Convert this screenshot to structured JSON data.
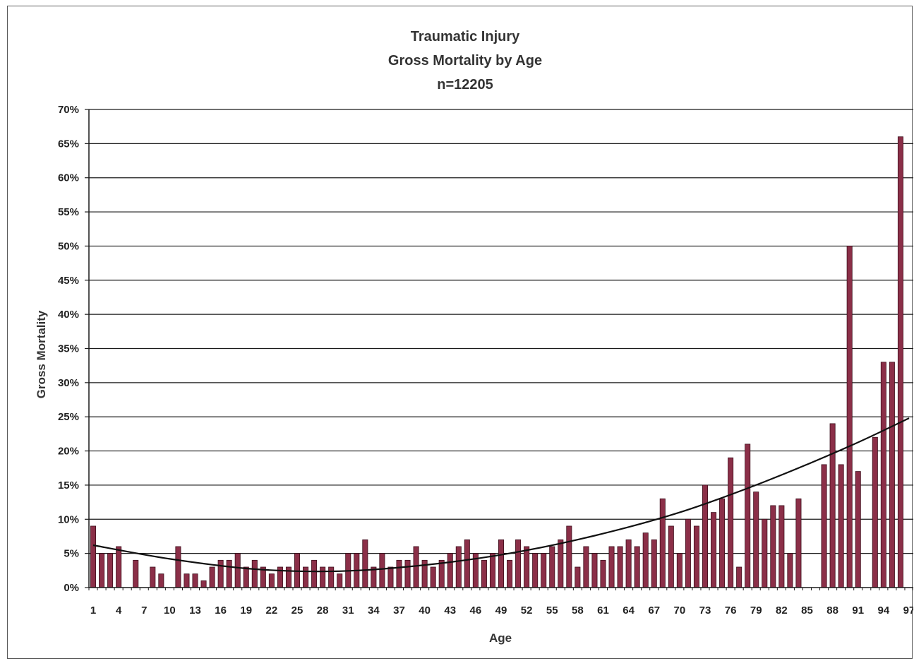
{
  "chart_data": {
    "type": "bar",
    "title_lines": [
      "Traumatic Injury",
      "Gross Mortality by Age",
      "n=12205"
    ],
    "xlabel": "Age",
    "ylabel": "Gross Mortality",
    "ylim": [
      0,
      70
    ],
    "y_tick_step": 5,
    "y_unit": "%",
    "grid": true,
    "legend": "none",
    "bar_color": "#8b2f48",
    "trendline_color": "#111111",
    "categories": [
      1,
      2,
      3,
      4,
      5,
      6,
      7,
      8,
      9,
      10,
      11,
      12,
      13,
      14,
      15,
      16,
      17,
      18,
      19,
      20,
      21,
      22,
      23,
      24,
      25,
      26,
      27,
      28,
      29,
      30,
      31,
      32,
      33,
      34,
      35,
      36,
      37,
      38,
      39,
      40,
      41,
      42,
      43,
      44,
      45,
      46,
      47,
      48,
      49,
      50,
      51,
      52,
      53,
      54,
      55,
      56,
      57,
      58,
      59,
      60,
      61,
      62,
      63,
      64,
      65,
      66,
      67,
      68,
      69,
      70,
      71,
      72,
      73,
      74,
      75,
      76,
      77,
      78,
      79,
      80,
      81,
      82,
      83,
      84,
      85,
      86,
      87,
      88,
      89,
      90,
      91,
      92,
      93,
      94,
      95,
      96,
      97
    ],
    "x_tick_labels": [
      "1",
      "4",
      "7",
      "10",
      "13",
      "16",
      "19",
      "22",
      "25",
      "28",
      "31",
      "34",
      "37",
      "40",
      "43",
      "46",
      "49",
      "52",
      "55",
      "58",
      "61",
      "64",
      "67",
      "70",
      "73",
      "76",
      "79",
      "82",
      "85",
      "88",
      "91",
      "94",
      "97"
    ],
    "series": [
      {
        "values": [
          9,
          5,
          5,
          6,
          0,
          4,
          0,
          3,
          2,
          0,
          6,
          2,
          2,
          1,
          3,
          4,
          4,
          5,
          3,
          4,
          3,
          2,
          3,
          3,
          5,
          3,
          4,
          3,
          3,
          2,
          5,
          5,
          7,
          3,
          5,
          3,
          4,
          4,
          6,
          4,
          3,
          4,
          5,
          6,
          7,
          5,
          4,
          5,
          7,
          4,
          7,
          6,
          5,
          5,
          6,
          7,
          9,
          3,
          6,
          5,
          4,
          6,
          6,
          7,
          6,
          8,
          7,
          13,
          9,
          5,
          10,
          9,
          15,
          11,
          13,
          19,
          3,
          21,
          14,
          10,
          12,
          12,
          5,
          13,
          0,
          0,
          18,
          24,
          18,
          50,
          17,
          0,
          22,
          33,
          33,
          66,
          0
        ]
      }
    ],
    "trendline": {
      "type": "polynomial",
      "points": [
        [
          1,
          6.2
        ],
        [
          10,
          4.2
        ],
        [
          20,
          2.7
        ],
        [
          30,
          2.4
        ],
        [
          40,
          3.3
        ],
        [
          50,
          5.0
        ],
        [
          60,
          7.6
        ],
        [
          70,
          11.0
        ],
        [
          80,
          15.5
        ],
        [
          90,
          20.7
        ],
        [
          97,
          24.8
        ]
      ]
    }
  }
}
